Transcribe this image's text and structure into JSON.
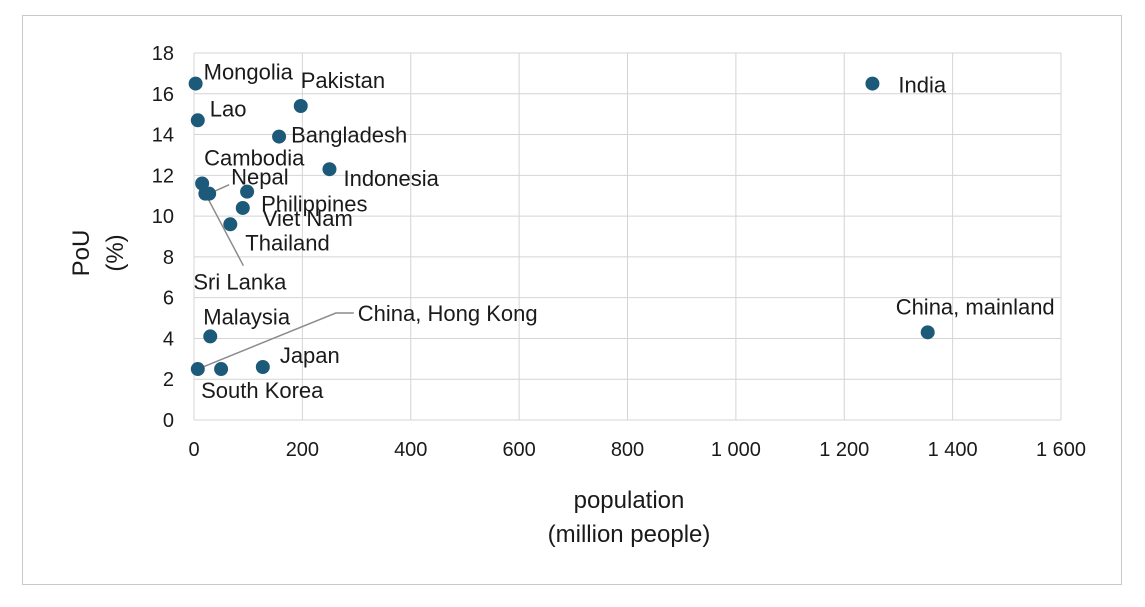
{
  "chart_data": {
    "type": "scatter",
    "xlabel": [
      "population",
      "(million people)"
    ],
    "ylabel": [
      "PoU",
      "(%)"
    ],
    "xlim": [
      0,
      1600
    ],
    "ylim": [
      0,
      18
    ],
    "x_ticks": [
      "0",
      "200",
      "400",
      "600",
      "800",
      "1 000",
      "1 200",
      "1 400",
      "1 600"
    ],
    "y_ticks": [
      "0",
      "2",
      "4",
      "6",
      "8",
      "10",
      "12",
      "14",
      "16",
      "18"
    ],
    "grid": true,
    "marker_color": "#1d5a7a",
    "points": [
      {
        "label": "Mongolia",
        "x": 3,
        "y": 16.5
      },
      {
        "label": "Pakistan",
        "x": 197,
        "y": 15.4
      },
      {
        "label": "India",
        "x": 1252,
        "y": 16.5
      },
      {
        "label": "Lao",
        "x": 7,
        "y": 14.7
      },
      {
        "label": "Bangladesh",
        "x": 157,
        "y": 13.9
      },
      {
        "label": "Indonesia",
        "x": 250,
        "y": 12.3
      },
      {
        "label": "Cambodia",
        "x": 15,
        "y": 11.6
      },
      {
        "label": "Nepal",
        "x": 28,
        "y": 11.1
      },
      {
        "label": "Philippines",
        "x": 98,
        "y": 11.2
      },
      {
        "label": "Sri Lanka",
        "x": 21,
        "y": 11.1
      },
      {
        "label": "Viet Nam",
        "x": 90,
        "y": 10.4
      },
      {
        "label": "Thailand",
        "x": 67,
        "y": 9.6
      },
      {
        "label": "Malaysia",
        "x": 30,
        "y": 4.1
      },
      {
        "label": "China, Hong Kong",
        "x": 7,
        "y": 2.5
      },
      {
        "label": "South Korea",
        "x": 50,
        "y": 2.5
      },
      {
        "label": "Japan",
        "x": 127,
        "y": 2.6
      },
      {
        "label": "China, mainland",
        "x": 1354,
        "y": 4.3
      }
    ]
  }
}
